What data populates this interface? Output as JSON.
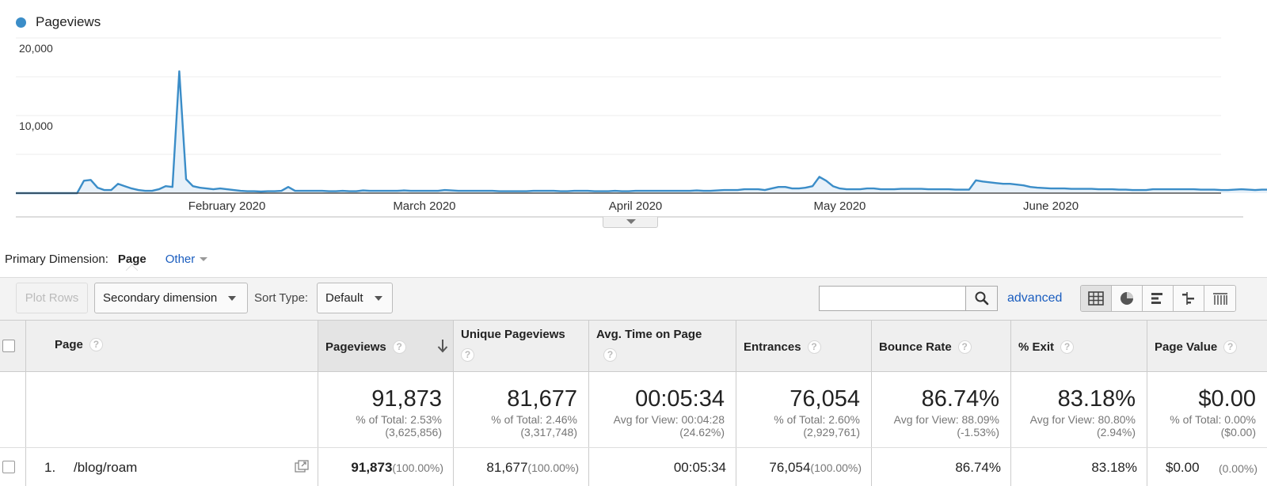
{
  "chart": {
    "legend_label": "Pageviews",
    "color": "#3b8dc8"
  },
  "chart_data": {
    "type": "area",
    "title": "",
    "series": [
      {
        "name": "Pageviews"
      }
    ],
    "ylim": [
      0,
      20000
    ],
    "y_ticks": [
      "20,000",
      "10,000"
    ],
    "x_tick_labels": [
      "February 2020",
      "March 2020",
      "April 2020",
      "May 2020",
      "June 2020"
    ],
    "x_start": "2020-01-01",
    "x_end": "2020-06-26",
    "values": [
      0,
      0,
      0,
      0,
      0,
      0,
      0,
      0,
      0,
      0,
      1600,
      1700,
      700,
      400,
      400,
      1200,
      900,
      600,
      400,
      300,
      300,
      500,
      900,
      800,
      15700,
      1800,
      900,
      700,
      600,
      500,
      600,
      500,
      400,
      300,
      250,
      250,
      200,
      250,
      250,
      300,
      800,
      300,
      300,
      300,
      300,
      300,
      250,
      250,
      300,
      250,
      250,
      350,
      300,
      300,
      300,
      300,
      300,
      350,
      300,
      300,
      300,
      300,
      300,
      400,
      350,
      300,
      300,
      300,
      300,
      300,
      300,
      250,
      250,
      250,
      250,
      250,
      300,
      300,
      300,
      300,
      250,
      250,
      300,
      300,
      300,
      250,
      250,
      250,
      300,
      250,
      250,
      300,
      300,
      300,
      300,
      300,
      300,
      300,
      300,
      300,
      350,
      300,
      300,
      350,
      400,
      400,
      400,
      500,
      500,
      500,
      400,
      600,
      800,
      800,
      600,
      600,
      700,
      900,
      2100,
      1600,
      900,
      600,
      500,
      500,
      500,
      600,
      600,
      500,
      500,
      500,
      550,
      550,
      550,
      550,
      500,
      500,
      500,
      500,
      450,
      450,
      450,
      1650,
      1500,
      1400,
      1300,
      1200,
      1200,
      1100,
      1000,
      800,
      700,
      650,
      600,
      600,
      600,
      550,
      550,
      550,
      550,
      500,
      500,
      500,
      450,
      450,
      400,
      400,
      400,
      500,
      500,
      500,
      500,
      500,
      500,
      500,
      450,
      450,
      450,
      400,
      400,
      450,
      500,
      450,
      400,
      450,
      450,
      500,
      500,
      500,
      450,
      500,
      500,
      800,
      700,
      600,
      600,
      600,
      500
    ]
  },
  "primary_dimension": {
    "label": "Primary Dimension:",
    "active": "Page",
    "other": "Other"
  },
  "toolbar": {
    "plot_rows": "Plot Rows",
    "secondary_dimension": "Secondary dimension",
    "sort_type_label": "Sort Type:",
    "sort_type_value": "Default",
    "search_value": "",
    "advanced": "advanced"
  },
  "table": {
    "headers": {
      "page": "Page",
      "pageviews": "Pageviews",
      "unique_pageviews": "Unique Pageviews",
      "avg_time": "Avg. Time on Page",
      "entrances": "Entrances",
      "bounce_rate": "Bounce Rate",
      "exit": "% Exit",
      "page_value": "Page Value"
    },
    "totals": {
      "pageviews": {
        "value": "91,873",
        "sub1": "% of Total: 2.53%",
        "sub2": "(3,625,856)"
      },
      "unique_pageviews": {
        "value": "81,677",
        "sub1": "% of Total: 2.46%",
        "sub2": "(3,317,748)"
      },
      "avg_time": {
        "value": "00:05:34",
        "sub1": "Avg for View: 00:04:28",
        "sub2": "(24.62%)"
      },
      "entrances": {
        "value": "76,054",
        "sub1": "% of Total: 2.60%",
        "sub2": "(2,929,761)"
      },
      "bounce_rate": {
        "value": "86.74%",
        "sub1": "Avg for View: 88.09%",
        "sub2": "(-1.53%)"
      },
      "exit": {
        "value": "83.18%",
        "sub1": "Avg for View: 80.80%",
        "sub2": "(2.94%)"
      },
      "page_value": {
        "value": "$0.00",
        "sub1": "% of Total: 0.00%",
        "sub2": "($0.00)"
      }
    },
    "rows": [
      {
        "index": "1.",
        "page": "/blog/roam",
        "pageviews": "91,873",
        "pageviews_pct": "(100.00%)",
        "unique_pageviews": "81,677",
        "unique_pageviews_pct": "(100.00%)",
        "avg_time": "00:05:34",
        "entrances": "76,054",
        "entrances_pct": "(100.00%)",
        "bounce_rate": "86.74%",
        "exit": "83.18%",
        "page_value": "$0.00",
        "page_value_pct": "(0.00%)"
      }
    ]
  }
}
